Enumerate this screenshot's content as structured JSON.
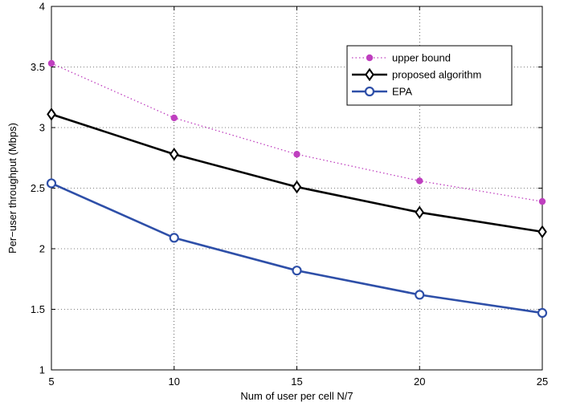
{
  "chart_data": {
    "type": "line",
    "xlabel": "Num of user per cell N/7",
    "ylabel": "Per−user throughput (Mbps)",
    "xlim": [
      5,
      25
    ],
    "ylim": [
      1,
      4
    ],
    "x_ticks": [
      "5",
      "10",
      "15",
      "20",
      "25"
    ],
    "y_ticks": [
      "1",
      "1.5",
      "2",
      "2.5",
      "3",
      "3.5",
      "4"
    ],
    "grid": true,
    "legend_position": "top-right",
    "x": [
      5,
      10,
      15,
      20,
      25
    ],
    "series": [
      {
        "name": "upper bound",
        "values": [
          3.53,
          3.08,
          2.78,
          2.56,
          2.39
        ],
        "color": "#bf3fbf",
        "style": "dotted",
        "marker": "dot"
      },
      {
        "name": "proposed algorithm",
        "values": [
          3.11,
          2.78,
          2.51,
          2.3,
          2.14
        ],
        "color": "#000000",
        "style": "solid",
        "marker": "diamond"
      },
      {
        "name": "EPA",
        "values": [
          2.54,
          2.09,
          1.82,
          1.62,
          1.47
        ],
        "color": "#2e4fa8",
        "style": "solid",
        "marker": "circle"
      }
    ]
  }
}
